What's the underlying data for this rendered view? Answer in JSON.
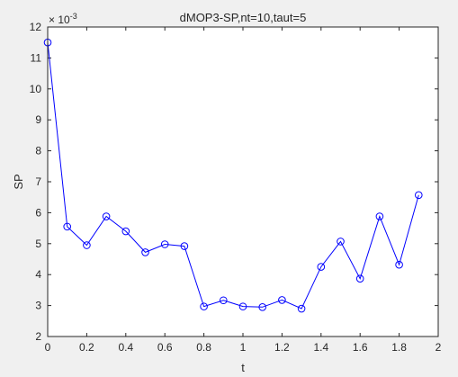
{
  "chart_data": {
    "type": "line",
    "title": "dMOP3-SP,nt=10,taut=5",
    "xlabel": "t",
    "ylabel": "SP",
    "exponent_base": "× 10",
    "exponent_power": "-3",
    "xlim": [
      0,
      2
    ],
    "ylim": [
      2,
      12
    ],
    "x_ticks": [
      0,
      0.2,
      0.4,
      0.6,
      0.8,
      1,
      1.2,
      1.4,
      1.6,
      1.8,
      2
    ],
    "x_tick_labels": [
      "0",
      "0.2",
      "0.4",
      "0.6",
      "0.8",
      "1",
      "1.2",
      "1.4",
      "1.6",
      "1.8",
      "2"
    ],
    "y_ticks": [
      2,
      3,
      4,
      5,
      6,
      7,
      8,
      9,
      10,
      11,
      12
    ],
    "y_tick_labels": [
      "2",
      "3",
      "4",
      "5",
      "6",
      "7",
      "8",
      "9",
      "10",
      "11",
      "12"
    ],
    "grid": false,
    "series": [
      {
        "color": "#0000ff",
        "marker": "circle",
        "x": [
          0,
          0.1,
          0.2,
          0.3,
          0.4,
          0.5,
          0.6,
          0.7,
          0.8,
          0.9,
          1.0,
          1.1,
          1.2,
          1.3,
          1.4,
          1.5,
          1.6,
          1.7,
          1.8,
          1.9
        ],
        "y": [
          11.5,
          5.55,
          4.95,
          5.88,
          5.4,
          4.72,
          4.98,
          4.92,
          2.97,
          3.17,
          2.97,
          2.95,
          3.18,
          2.9,
          4.25,
          5.07,
          3.87,
          5.88,
          4.32,
          6.57
        ]
      }
    ]
  }
}
